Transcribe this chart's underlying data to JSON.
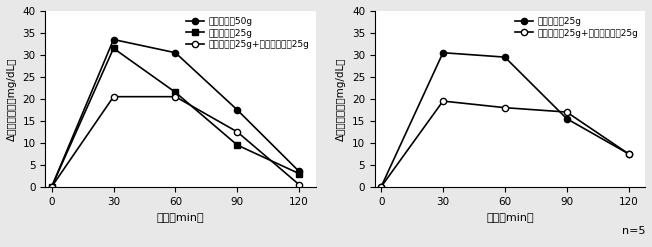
{
  "left": {
    "x": [
      0,
      30,
      60,
      90,
      120
    ],
    "series": [
      {
        "label": "スクロース50g",
        "y": [
          0,
          33.5,
          30.5,
          17.5,
          3.5
        ],
        "marker": "o",
        "fillstyle": "full",
        "color": "black",
        "linestyle": "-"
      },
      {
        "label": "スクロース25g",
        "y": [
          0,
          31.5,
          21.5,
          9.5,
          3.0
        ],
        "marker": "s",
        "fillstyle": "full",
        "color": "black",
        "linestyle": "-"
      },
      {
        "label": "スクロース25g+パラチノース25g",
        "y": [
          0,
          20.5,
          20.5,
          12.5,
          0.5
        ],
        "marker": "o",
        "fillstyle": "none",
        "color": "black",
        "linestyle": "-"
      }
    ],
    "ylabel": "Δ血糖値上昇（mg/dL）",
    "xlabel": "時間（min）",
    "ylim": [
      0,
      40
    ],
    "yticks": [
      0,
      5,
      10,
      15,
      20,
      25,
      30,
      35,
      40
    ],
    "xticks": [
      0,
      30,
      60,
      90,
      120
    ]
  },
  "right": {
    "x": [
      0,
      30,
      60,
      90,
      120
    ],
    "series": [
      {
        "label": "グルコース25g",
        "y": [
          0,
          30.5,
          29.5,
          15.5,
          7.5
        ],
        "marker": "o",
        "fillstyle": "full",
        "color": "black",
        "linestyle": "-"
      },
      {
        "label": "グルコース25g+パラチノース25g",
        "y": [
          0,
          19.5,
          18.0,
          17.0,
          7.5
        ],
        "marker": "o",
        "fillstyle": "none",
        "color": "black",
        "linestyle": "-"
      }
    ],
    "ylabel": "Δ血糖値上昇（mg/dL）",
    "xlabel": "時間（min）",
    "ylim": [
      0,
      40
    ],
    "yticks": [
      0,
      5,
      10,
      15,
      20,
      25,
      30,
      35,
      40
    ],
    "xticks": [
      0,
      30,
      60,
      90,
      120
    ],
    "note": "n=5"
  },
  "background_color": "#e8e8e8",
  "plot_bg": "#ffffff"
}
